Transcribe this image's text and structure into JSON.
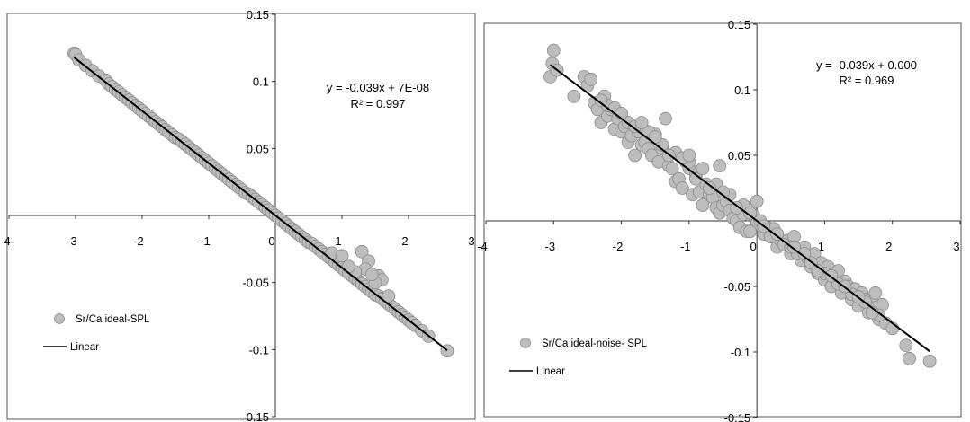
{
  "chart_data": [
    {
      "type": "scatter",
      "xlim": [
        -4,
        3
      ],
      "ylim": [
        -0.15,
        0.15
      ],
      "x_ticks": [
        "-4",
        "-3",
        "-2",
        "-1",
        "0",
        "1",
        "2",
        "3"
      ],
      "y_ticks": [
        "0.15",
        "0.1",
        "0.05",
        "0",
        "-0.05",
        "-0.1",
        "-0.15"
      ],
      "equation": "y = -0.039x + 7E-08",
      "r2": "R² = 0.997",
      "legend": {
        "placement": "lower-left",
        "entries": [
          "Sr/Ca ideal-SPL",
          "Linear"
        ]
      },
      "series": [
        {
          "name": "Sr/Ca ideal-SPL",
          "kind": "points",
          "x": [
            -3.02,
            -3.0,
            -2.95,
            -2.85,
            -2.75,
            -2.65,
            -2.55,
            -2.5,
            -2.45,
            -2.4,
            -2.35,
            -2.3,
            -2.25,
            -2.2,
            -2.15,
            -2.1,
            -2.05,
            -2.0,
            -1.95,
            -1.9,
            -1.85,
            -1.8,
            -1.75,
            -1.7,
            -1.65,
            -1.6,
            -1.55,
            -1.5,
            -1.45,
            -1.4,
            -1.35,
            -1.3,
            -1.25,
            -1.2,
            -1.15,
            -1.1,
            -1.05,
            -1.0,
            -0.95,
            -0.9,
            -0.85,
            -0.8,
            -0.75,
            -0.7,
            -0.65,
            -0.6,
            -0.55,
            -0.5,
            -0.45,
            -0.4,
            -0.35,
            -0.3,
            -0.25,
            -0.2,
            -0.15,
            -0.1,
            -0.05,
            0.0,
            0.05,
            0.1,
            0.15,
            0.2,
            0.25,
            0.3,
            0.35,
            0.4,
            0.45,
            0.5,
            0.55,
            0.6,
            0.65,
            0.7,
            0.75,
            0.8,
            0.85,
            0.9,
            0.95,
            1.0,
            1.05,
            1.1,
            1.15,
            1.2,
            1.25,
            1.3,
            1.35,
            1.4,
            1.45,
            1.5,
            1.55,
            1.6,
            1.65,
            1.7,
            1.75,
            1.8,
            1.85,
            1.9,
            1.95,
            2.0,
            2.05,
            2.1,
            2.2,
            2.3,
            2.58,
            0.85,
            1.0,
            1.3,
            1.4,
            1.35,
            1.55,
            1.6,
            1.7,
            1.2,
            1.1,
            1.5,
            1.45
          ],
          "y": [
            0.121,
            0.12,
            0.116,
            0.112,
            0.108,
            0.104,
            0.101,
            0.098,
            0.096,
            0.094,
            0.092,
            0.09,
            0.088,
            0.086,
            0.084,
            0.082,
            0.08,
            0.078,
            0.076,
            0.074,
            0.072,
            0.07,
            0.068,
            0.066,
            0.064,
            0.062,
            0.06,
            0.058,
            0.057,
            0.055,
            0.053,
            0.051,
            0.049,
            0.047,
            0.045,
            0.043,
            0.041,
            0.039,
            0.037,
            0.035,
            0.033,
            0.031,
            0.029,
            0.027,
            0.025,
            0.023,
            0.021,
            0.019,
            0.017,
            0.016,
            0.014,
            0.012,
            0.01,
            0.008,
            0.006,
            0.004,
            0.002,
            0.0,
            -0.002,
            -0.004,
            -0.006,
            -0.008,
            -0.01,
            -0.012,
            -0.014,
            -0.016,
            -0.018,
            -0.02,
            -0.021,
            -0.023,
            -0.025,
            -0.027,
            -0.029,
            -0.031,
            -0.033,
            -0.035,
            -0.037,
            -0.039,
            -0.041,
            -0.043,
            -0.045,
            -0.047,
            -0.049,
            -0.051,
            -0.053,
            -0.055,
            -0.057,
            -0.059,
            -0.06,
            -0.062,
            -0.064,
            -0.066,
            -0.068,
            -0.07,
            -0.072,
            -0.074,
            -0.076,
            -0.078,
            -0.08,
            -0.082,
            -0.086,
            -0.09,
            -0.101,
            -0.028,
            -0.03,
            -0.027,
            -0.034,
            -0.04,
            -0.045,
            -0.048,
            -0.06,
            -0.042,
            -0.038,
            -0.05,
            -0.044
          ]
        },
        {
          "name": "Linear",
          "kind": "line",
          "x": [
            -3.02,
            2.58
          ],
          "y": [
            0.1178,
            -0.1006
          ]
        }
      ]
    },
    {
      "type": "scatter",
      "xlim": [
        -4,
        3
      ],
      "ylim": [
        -0.15,
        0.15
      ],
      "x_ticks": [
        "-4",
        "-3",
        "-2",
        "-1",
        "0",
        "1",
        "2",
        "3"
      ],
      "y_ticks": [
        "0.15",
        "0.1",
        "0.05",
        "0",
        "-0.05",
        "-0.1",
        "-0.15"
      ],
      "equation": "y = -0.039x + 0.000",
      "r2": "R² = 0.969",
      "legend": {
        "placement": "lower-left",
        "entries": [
          "Sr/Ca ideal-noise- SPL",
          "Linear"
        ]
      },
      "series": [
        {
          "name": "Sr/Ca ideal-noise- SPL",
          "kind": "points",
          "x": [
            -3.05,
            -3.02,
            -3.0,
            -2.95,
            -2.7,
            -2.55,
            -2.5,
            -2.45,
            -2.4,
            -2.35,
            -2.3,
            -2.25,
            -2.2,
            -2.15,
            -2.1,
            -2.05,
            -2.0,
            -1.95,
            -1.9,
            -1.85,
            -1.8,
            -1.75,
            -1.7,
            -1.65,
            -1.6,
            -1.55,
            -1.5,
            -1.45,
            -1.4,
            -1.35,
            -1.3,
            -1.25,
            -1.2,
            -1.15,
            -1.1,
            -1.05,
            -1.0,
            -0.95,
            -0.9,
            -0.85,
            -0.8,
            -0.75,
            -0.7,
            -0.65,
            -0.6,
            -0.55,
            -0.5,
            -0.45,
            -0.4,
            -0.35,
            -0.3,
            -0.25,
            -0.2,
            -0.15,
            -0.1,
            -0.05,
            0.0,
            0.05,
            0.1,
            0.15,
            0.2,
            0.25,
            0.3,
            0.35,
            0.4,
            0.45,
            0.5,
            0.55,
            0.6,
            0.65,
            0.7,
            0.75,
            0.8,
            0.85,
            0.9,
            0.95,
            1.0,
            1.05,
            1.1,
            1.15,
            1.2,
            1.25,
            1.3,
            1.35,
            1.4,
            1.45,
            1.5,
            1.55,
            1.6,
            1.65,
            1.7,
            1.75,
            1.8,
            1.85,
            1.9,
            2.0,
            2.2,
            2.25,
            2.55,
            -2.2,
            -2.1,
            -1.9,
            -1.8,
            -1.6,
            -1.4,
            -1.2,
            -1.0,
            -0.8,
            -0.6,
            -0.4,
            -0.2,
            0.0,
            0.2,
            0.4,
            0.6,
            0.8,
            1.0,
            1.2,
            1.4,
            1.6,
            1.8,
            -2.3,
            -2.0,
            -1.7,
            -1.5,
            -1.3,
            -1.1,
            -0.9,
            -0.7,
            -0.5,
            -0.3,
            -0.1,
            0.1,
            0.3,
            0.5,
            0.7,
            0.9,
            1.1,
            1.3,
            1.5,
            1.7,
            0.55,
            1.75,
            -0.55,
            -1.0,
            -0.1
          ],
          "y": [
            0.11,
            0.12,
            0.13,
            0.115,
            0.095,
            0.11,
            0.103,
            0.108,
            0.09,
            0.085,
            0.075,
            0.095,
            0.08,
            0.085,
            0.07,
            0.078,
            0.068,
            0.072,
            0.06,
            0.065,
            0.05,
            0.068,
            0.058,
            0.06,
            0.055,
            0.05,
            0.066,
            0.045,
            0.055,
            0.078,
            0.042,
            0.04,
            0.03,
            0.032,
            0.025,
            0.045,
            0.04,
            0.02,
            0.035,
            0.022,
            0.012,
            0.028,
            0.02,
            0.018,
            0.01,
            0.006,
            0.012,
            0.015,
            0.008,
            0.002,
            0.0,
            -0.005,
            0.005,
            -0.008,
            0.01,
            0.004,
            -0.002,
            0.0,
            -0.01,
            -0.005,
            -0.012,
            -0.006,
            -0.02,
            -0.015,
            -0.018,
            -0.015,
            -0.025,
            -0.012,
            -0.022,
            -0.03,
            -0.02,
            -0.028,
            -0.035,
            -0.025,
            -0.04,
            -0.032,
            -0.045,
            -0.035,
            -0.05,
            -0.04,
            -0.038,
            -0.055,
            -0.046,
            -0.05,
            -0.06,
            -0.052,
            -0.065,
            -0.055,
            -0.06,
            -0.07,
            -0.062,
            -0.066,
            -0.075,
            -0.064,
            -0.078,
            -0.082,
            -0.095,
            -0.105,
            -0.107,
            0.088,
            0.086,
            0.075,
            0.072,
            0.068,
            0.058,
            0.052,
            0.045,
            0.04,
            0.028,
            0.02,
            0.012,
            0.015,
            -0.012,
            -0.018,
            -0.025,
            -0.032,
            -0.04,
            -0.048,
            -0.056,
            -0.062,
            -0.072,
            0.092,
            0.082,
            0.075,
            0.064,
            0.05,
            0.048,
            0.032,
            0.025,
            0.022,
            0.01,
            0.006,
            -0.004,
            -0.01,
            -0.02,
            -0.025,
            -0.038,
            -0.042,
            -0.05,
            -0.058,
            -0.07,
            -0.02,
            -0.055,
            0.042,
            0.05,
            -0.008
          ]
        },
        {
          "name": "Linear",
          "kind": "line",
          "x": [
            -3.05,
            2.55
          ],
          "y": [
            0.119,
            -0.0995
          ]
        }
      ]
    }
  ]
}
